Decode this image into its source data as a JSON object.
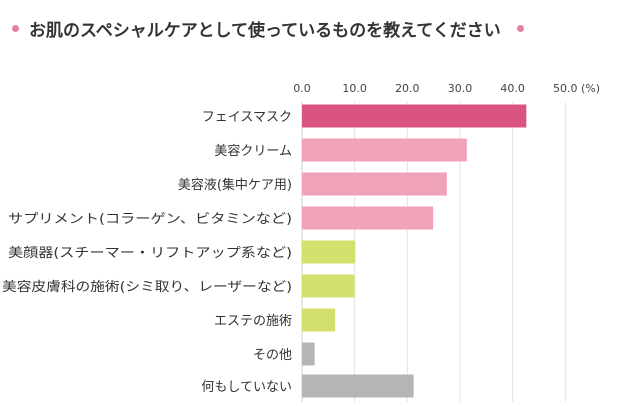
{
  "chart_data": {
    "type": "bar",
    "orientation": "horizontal",
    "title": "お肌のスペシャルケアとして使っているものを教えてください",
    "xlabel": "",
    "unit_label": "(%)",
    "xlim": [
      0,
      50
    ],
    "ticks": [
      "0.0",
      "10.0",
      "20.0",
      "30.0",
      "40.0",
      "50.0"
    ],
    "grid": true,
    "categories": [
      "フェイスマスク",
      "美容クリーム",
      "美容液(集中ケア用)",
      "サプリメント(コラーゲン、ビタミンなど)",
      "美顔器(スチーマー・リフトアップ系など)",
      "美容皮膚科の施術(シミ取り、レーザーなど)",
      "エステの施術",
      "その他",
      "何もしていない"
    ],
    "values": [
      42.6,
      31.3,
      27.5,
      24.9,
      10.1,
      10.0,
      6.3,
      2.4,
      21.2
    ],
    "colors": [
      "#d9557f",
      "#f0a2b8",
      "#f0a2b8",
      "#f0a2b8",
      "#d3e06d",
      "#d3e06d",
      "#d3e06d",
      "#b5b5b5",
      "#b5b5b5"
    ],
    "title_dot_color": "#e7809f"
  }
}
